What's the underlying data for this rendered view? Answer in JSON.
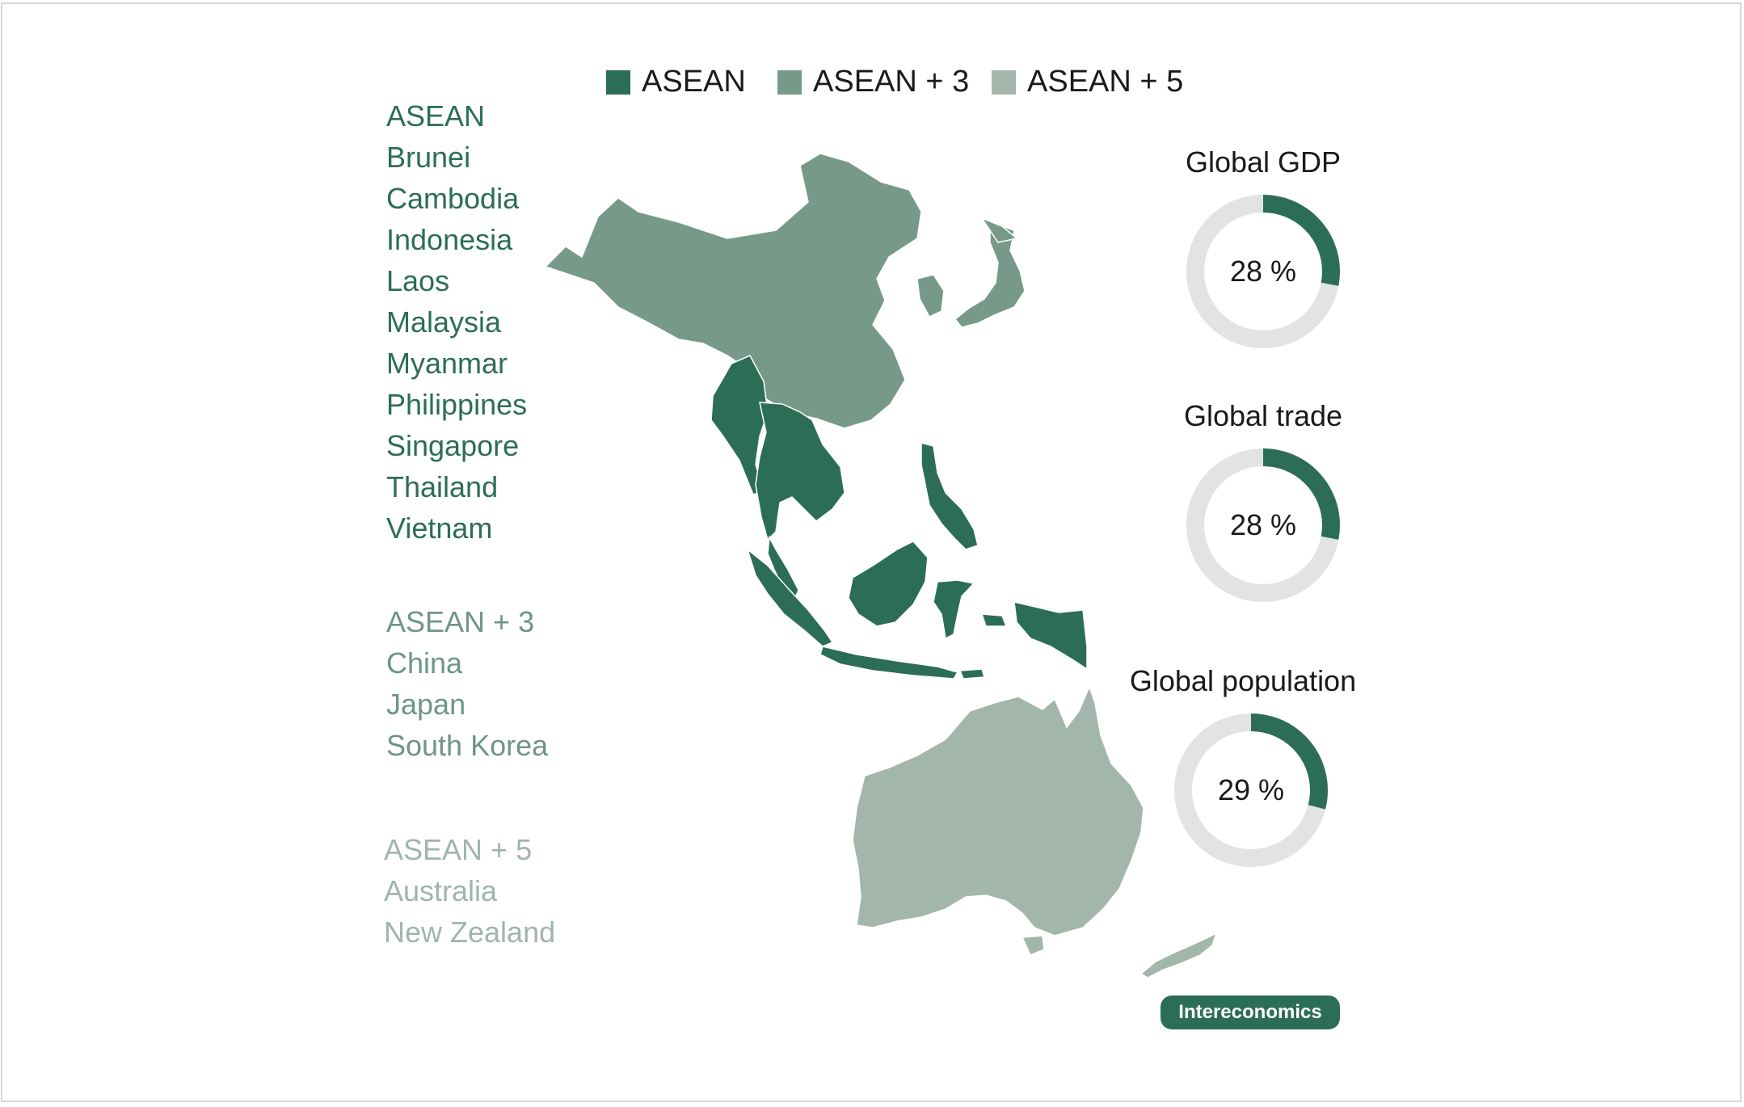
{
  "colors": {
    "asean": "#2c6e55",
    "asean_plus_3": "#76998a",
    "asean_plus_5": "#a3b6ab",
    "donut_track": "#e3e3e3"
  },
  "legend": [
    {
      "label": "ASEAN",
      "color": "#2c6e55"
    },
    {
      "label": "ASEAN + 3",
      "color": "#76998a"
    },
    {
      "label": "ASEAN + 5",
      "color": "#a3b6ab"
    }
  ],
  "groups": {
    "asean": {
      "title": "ASEAN",
      "countries": [
        "Brunei",
        "Cambodia",
        "Indonesia",
        "Laos",
        "Malaysia",
        "Myanmar",
        "Philippines",
        "Singapore",
        "Thailand",
        "Vietnam"
      ]
    },
    "plus3": {
      "title": "ASEAN + 3",
      "countries": [
        "China",
        "Japan",
        "South Korea"
      ]
    },
    "plus5": {
      "title": "ASEAN + 5",
      "countries": [
        "Australia",
        "New Zealand"
      ]
    }
  },
  "stats": [
    {
      "label": "Global GDP",
      "value_text": "28 %",
      "fraction": 0.28
    },
    {
      "label": "Global trade",
      "value_text": "28 %",
      "fraction": 0.28
    },
    {
      "label": "Global population",
      "value_text": "29 %",
      "fraction": 0.29
    }
  ],
  "brand": "Intereconomics"
}
